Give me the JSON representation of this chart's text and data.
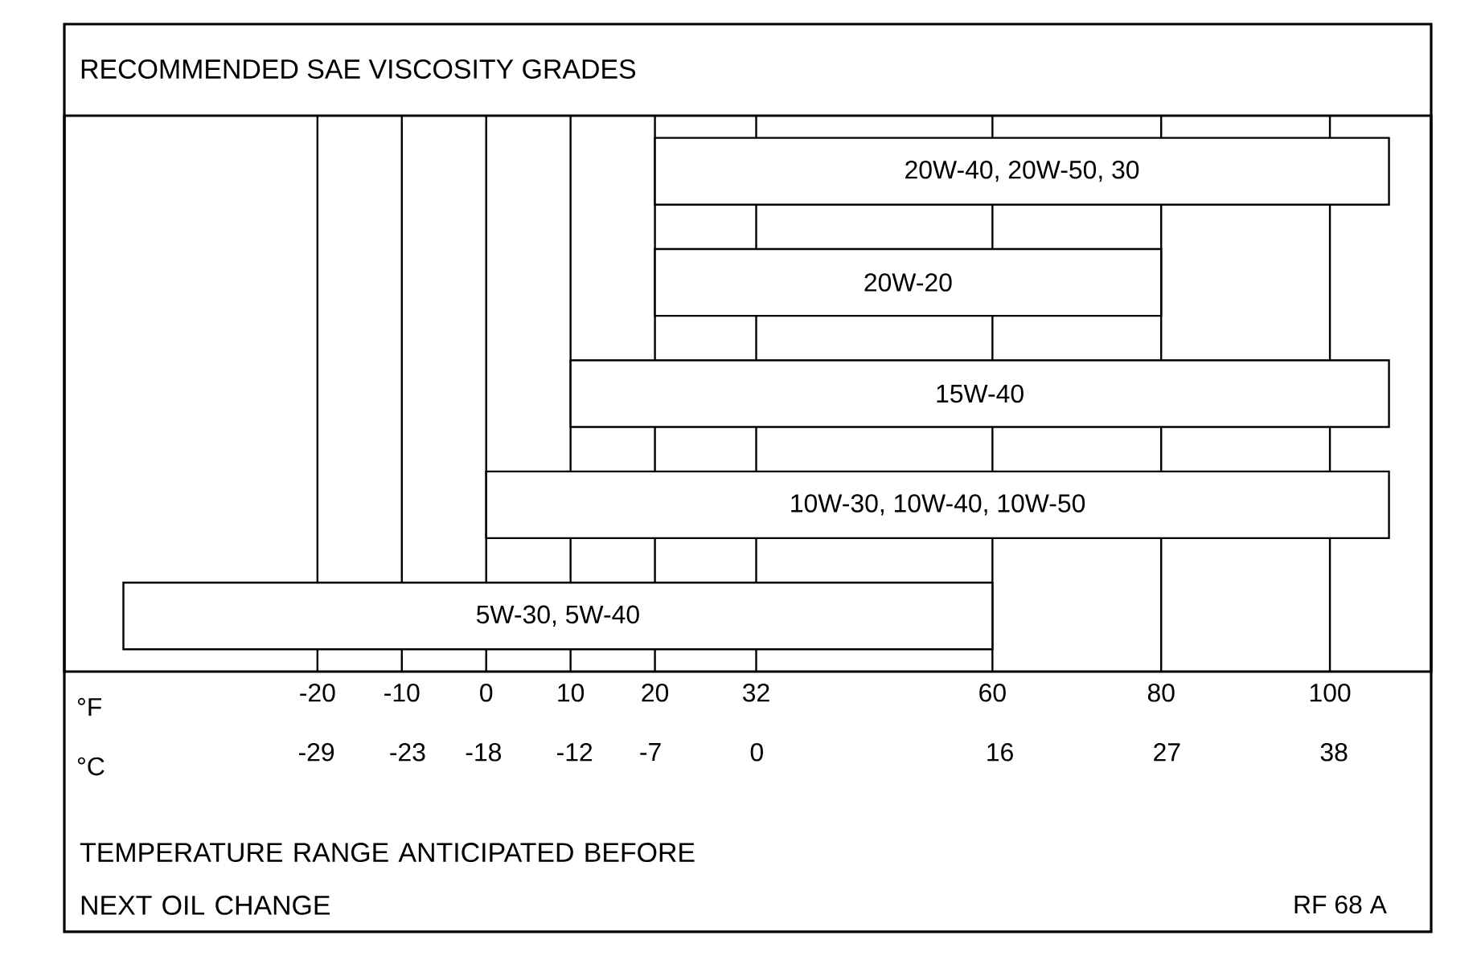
{
  "chart_data": {
    "type": "bar",
    "orientation": "horizontal",
    "title": "RECOMMENDED SAE VISCOSITY GRADES",
    "xlabel": "°F",
    "x2label": "°C",
    "categories": [
      "20W-40, 20W-50, 30",
      "20W-20",
      "15W-40",
      "10W-30, 10W-40, 10W-50",
      "5W-30, 5W-40"
    ],
    "base": [
      20,
      20,
      10,
      0,
      -43
    ],
    "values": [
      87,
      60,
      97,
      107,
      103
    ],
    "color": "#ffffff",
    "xlim": [
      -50,
      112
    ],
    "xticks": [
      -20,
      -10,
      0,
      10,
      20,
      32,
      60,
      80,
      100
    ],
    "x2lim": [
      -45.6,
      44.4
    ],
    "x2ticks": [
      -29,
      -23,
      -18,
      -12,
      -7,
      0,
      16,
      27,
      38
    ],
    "grid": "x",
    "annotations": [
      "TEMPERATURE RANGE ANTICIPATED BEFORE NEXT OIL CHANGE",
      "RF 68 A"
    ]
  }
}
